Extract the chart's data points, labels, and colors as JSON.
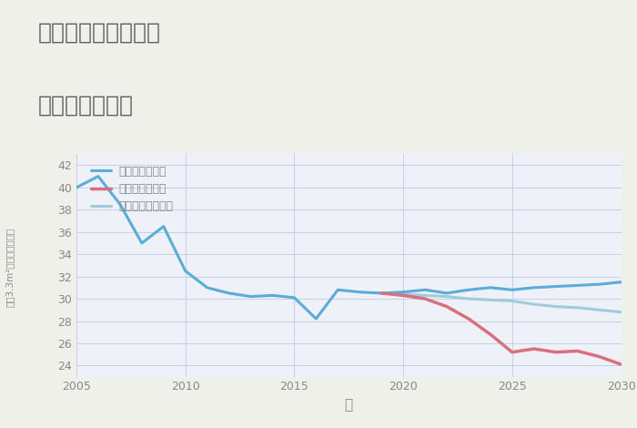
{
  "title_line1": "三重県桑名市筒尾の",
  "title_line2": "土地の価格推移",
  "xlabel": "年",
  "ylabel": "坪（3.3m²）単価（万円）",
  "background_color": "#f0f0eb",
  "plot_bg_color": "#eef1f8",
  "grid_color": "#c5d0e5",
  "xlim": [
    2005,
    2030
  ],
  "ylim": [
    23,
    43
  ],
  "yticks": [
    24,
    26,
    28,
    30,
    32,
    34,
    36,
    38,
    40,
    42
  ],
  "xticks": [
    2005,
    2010,
    2015,
    2020,
    2025,
    2030
  ],
  "good_x": [
    2005,
    2006,
    2007,
    2008,
    2009,
    2010,
    2011,
    2012,
    2013,
    2014,
    2015,
    2016,
    2017,
    2018,
    2019,
    2020,
    2021,
    2022,
    2023,
    2024,
    2025,
    2026,
    2027,
    2028,
    2029,
    2030
  ],
  "good_y": [
    40.0,
    41.0,
    38.5,
    35.0,
    36.5,
    32.5,
    31.0,
    30.5,
    30.2,
    30.3,
    30.1,
    28.2,
    30.8,
    30.6,
    30.5,
    30.6,
    30.8,
    30.5,
    30.8,
    31.0,
    30.8,
    31.0,
    31.1,
    31.2,
    31.3,
    31.5
  ],
  "bad_x": [
    2019,
    2020,
    2021,
    2022,
    2023,
    2024,
    2025,
    2026,
    2027,
    2028,
    2029,
    2030
  ],
  "bad_y": [
    30.5,
    30.3,
    30.0,
    29.3,
    28.2,
    26.8,
    25.2,
    25.5,
    25.2,
    25.3,
    24.8,
    24.1
  ],
  "normal_x": [
    2019,
    2020,
    2021,
    2022,
    2023,
    2024,
    2025,
    2026,
    2027,
    2028,
    2029,
    2030
  ],
  "normal_y": [
    30.5,
    30.4,
    30.3,
    30.2,
    30.0,
    29.9,
    29.8,
    29.5,
    29.3,
    29.2,
    29.0,
    28.8
  ],
  "good_color": "#5bacd8",
  "bad_color": "#d97080",
  "normal_color": "#a0ccd8",
  "good_label": "グッドシナリオ",
  "bad_label": "バッドシナリオ",
  "normal_label": "ノーマルシナリオ",
  "title_color": "#606060",
  "axis_color": "#888888",
  "title_fontsize": 18,
  "legend_fontsize": 9,
  "tick_fontsize": 9
}
